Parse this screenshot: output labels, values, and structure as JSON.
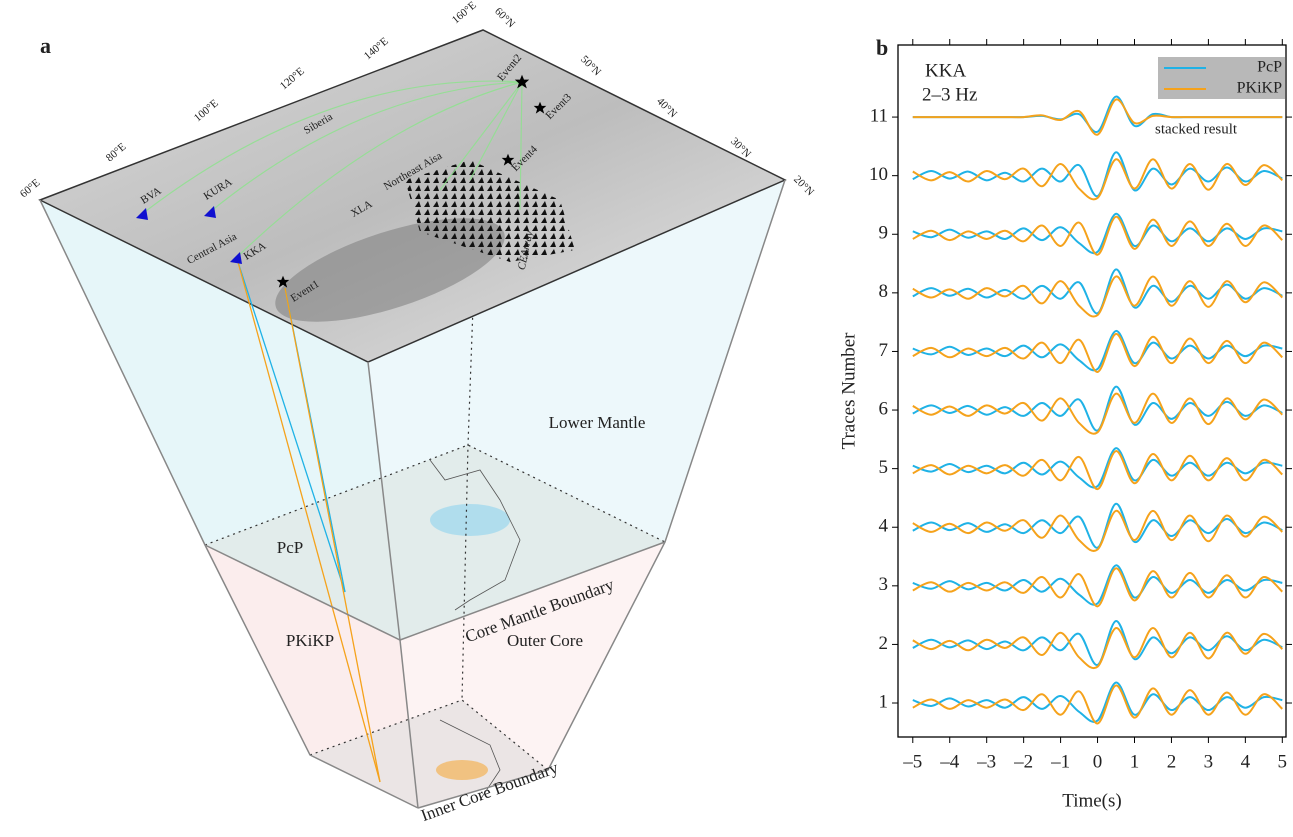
{
  "panel_a": {
    "label": "a",
    "longitudes": [
      "60°E",
      "80°E",
      "100°E",
      "120°E",
      "140°E",
      "160°E"
    ],
    "latitudes": [
      "60°N",
      "50°N",
      "40°N",
      "30°N",
      "20°N"
    ],
    "stations": [
      "BVA",
      "KURA",
      "KKA"
    ],
    "regions": [
      "Central Asia",
      "Siberia",
      "Northeast Aisa",
      "XLA",
      "CEArray"
    ],
    "events": [
      "Event1",
      "Event2",
      "Event3",
      "Event4"
    ],
    "layers": [
      "Lower Mantle",
      "Outer Core"
    ],
    "boundaries": [
      "Core Mantle Boundary",
      "Inner Core Boundary"
    ],
    "phases": [
      "PcP",
      "PKiKP"
    ]
  },
  "chart_data": {
    "type": "line",
    "panel_label": "b",
    "annotations": [
      "KKA",
      "2–3 Hz",
      "stacked result"
    ],
    "x_label": "Time(s)",
    "y_label": "Traces Number",
    "x": [
      -5,
      -4.5,
      -4,
      -3.5,
      -3,
      -2.5,
      -2,
      -1.5,
      -1,
      -0.5,
      0,
      0.5,
      1,
      1.5,
      2,
      2.5,
      3,
      3.5,
      4,
      4.5,
      5
    ],
    "xlim": [
      -5.4,
      5.1
    ],
    "xticks": [
      {
        "value": -5,
        "label": "–5"
      },
      {
        "value": -4,
        "label": "–4"
      },
      {
        "value": -3,
        "label": "–3"
      },
      {
        "value": -2,
        "label": "–2"
      },
      {
        "value": -1,
        "label": "–1"
      },
      0,
      1,
      2,
      3,
      4,
      5
    ],
    "ylim": [
      0.42,
      12.23
    ],
    "yticks": [
      1,
      2,
      3,
      4,
      5,
      6,
      7,
      8,
      9,
      10,
      11
    ],
    "series": [
      {
        "name": "PcP",
        "color": "#1fb2e6",
        "values": [
          [
            1.05,
            0.95,
            1.08,
            0.94,
            1.05,
            0.92,
            1.1,
            0.9,
            1.12,
            0.85,
            0.7,
            1.35,
            0.8,
            1.15,
            0.88,
            1.1,
            0.88,
            1.1,
            0.92,
            1.1,
            1.05
          ],
          [
            1.94,
            2.08,
            1.95,
            2.07,
            1.92,
            2.05,
            1.9,
            2.12,
            1.9,
            2.18,
            1.65,
            2.4,
            1.75,
            2.12,
            1.85,
            2.12,
            1.9,
            2.14,
            1.9,
            2.08,
            1.95
          ],
          [
            3.05,
            2.95,
            3.08,
            2.94,
            3.05,
            2.92,
            3.1,
            2.9,
            3.12,
            2.85,
            2.7,
            3.35,
            2.8,
            3.15,
            2.88,
            3.1,
            2.88,
            3.1,
            2.92,
            3.1,
            3.05
          ],
          [
            3.94,
            4.08,
            3.95,
            4.07,
            3.92,
            4.05,
            3.9,
            4.12,
            3.9,
            4.18,
            3.65,
            4.4,
            3.75,
            4.12,
            3.85,
            4.12,
            3.9,
            4.14,
            3.9,
            4.08,
            3.95
          ],
          [
            5.05,
            4.95,
            5.08,
            4.94,
            5.05,
            4.92,
            5.1,
            4.9,
            5.12,
            4.85,
            4.7,
            5.35,
            4.8,
            5.15,
            4.88,
            5.1,
            4.88,
            5.1,
            4.92,
            5.1,
            5.05
          ],
          [
            5.94,
            6.08,
            5.95,
            6.07,
            5.92,
            6.05,
            5.9,
            6.12,
            5.9,
            6.18,
            5.65,
            6.4,
            5.75,
            6.12,
            5.85,
            6.12,
            5.9,
            6.14,
            5.9,
            6.08,
            5.95
          ],
          [
            7.05,
            6.95,
            7.08,
            6.94,
            7.05,
            6.92,
            7.1,
            6.9,
            7.12,
            6.85,
            6.7,
            7.35,
            6.8,
            7.15,
            6.88,
            7.1,
            6.88,
            7.1,
            6.92,
            7.1,
            7.05
          ],
          [
            7.94,
            8.08,
            7.95,
            8.07,
            7.92,
            8.05,
            7.9,
            8.12,
            7.9,
            8.18,
            7.65,
            8.4,
            7.75,
            8.12,
            7.85,
            8.12,
            7.9,
            8.14,
            7.9,
            8.08,
            7.95
          ],
          [
            9.05,
            8.95,
            9.08,
            8.94,
            9.05,
            8.92,
            9.1,
            8.9,
            9.12,
            8.85,
            8.7,
            9.35,
            8.8,
            9.15,
            8.88,
            9.1,
            8.88,
            9.1,
            8.92,
            9.1,
            9.05
          ],
          [
            9.94,
            10.08,
            9.95,
            10.07,
            9.92,
            10.05,
            9.9,
            10.12,
            9.9,
            10.18,
            9.65,
            10.4,
            9.75,
            10.12,
            9.85,
            10.12,
            9.9,
            10.14,
            9.9,
            10.08,
            9.95
          ],
          [
            11,
            11,
            11,
            11,
            11,
            11,
            11,
            11.02,
            10.96,
            11.05,
            10.75,
            11.35,
            10.85,
            11.05,
            11,
            11,
            11,
            11,
            11,
            11,
            11
          ]
        ]
      },
      {
        "name": "PKiKP",
        "color": "#f5a21b",
        "values": [
          [
            0.92,
            1.06,
            0.9,
            1.05,
            0.92,
            1.06,
            0.88,
            1.15,
            0.8,
            1.2,
            0.65,
            1.3,
            0.75,
            1.25,
            0.8,
            1.22,
            0.8,
            1.18,
            0.8,
            1.15,
            0.9
          ],
          [
            2.07,
            1.92,
            2.06,
            1.9,
            2.08,
            1.94,
            2.12,
            1.82,
            2.2,
            1.78,
            1.62,
            2.28,
            1.78,
            2.28,
            1.78,
            2.2,
            1.76,
            2.2,
            1.84,
            2.18,
            1.92
          ],
          [
            2.92,
            3.06,
            2.9,
            3.05,
            2.92,
            3.06,
            2.88,
            3.15,
            2.8,
            3.2,
            2.65,
            3.3,
            2.75,
            3.25,
            2.8,
            3.22,
            2.8,
            3.18,
            2.8,
            3.15,
            2.9
          ],
          [
            4.07,
            3.92,
            4.06,
            3.9,
            4.08,
            3.94,
            4.12,
            3.82,
            4.2,
            3.78,
            3.62,
            4.28,
            3.78,
            4.28,
            3.78,
            4.2,
            3.76,
            4.2,
            3.84,
            4.18,
            3.92
          ],
          [
            4.92,
            5.06,
            4.9,
            5.05,
            4.92,
            5.06,
            4.88,
            5.15,
            4.8,
            5.2,
            4.65,
            5.3,
            4.75,
            5.25,
            4.8,
            5.22,
            4.8,
            5.18,
            4.8,
            5.15,
            4.9
          ],
          [
            6.07,
            5.92,
            6.06,
            5.9,
            6.08,
            5.94,
            6.12,
            5.82,
            6.2,
            5.78,
            5.62,
            6.28,
            5.78,
            6.28,
            5.78,
            6.2,
            5.76,
            6.2,
            5.84,
            6.18,
            5.92
          ],
          [
            6.92,
            7.06,
            6.9,
            7.05,
            6.92,
            7.06,
            6.88,
            7.15,
            6.8,
            7.2,
            6.65,
            7.3,
            6.75,
            7.25,
            6.8,
            7.22,
            6.8,
            7.18,
            6.8,
            7.15,
            6.9
          ],
          [
            8.07,
            7.92,
            8.06,
            7.9,
            8.08,
            7.94,
            8.12,
            7.82,
            8.2,
            7.78,
            7.62,
            8.28,
            7.78,
            8.28,
            7.78,
            8.2,
            7.76,
            8.2,
            7.84,
            8.18,
            7.92
          ],
          [
            8.92,
            9.06,
            8.9,
            9.05,
            8.92,
            9.06,
            8.88,
            9.15,
            8.8,
            9.2,
            8.65,
            9.3,
            8.75,
            9.25,
            8.8,
            9.22,
            8.8,
            9.18,
            8.8,
            9.15,
            8.9
          ],
          [
            10.07,
            9.92,
            10.06,
            9.9,
            10.08,
            9.94,
            10.12,
            9.82,
            10.2,
            9.78,
            9.62,
            10.28,
            9.78,
            10.28,
            9.78,
            10.2,
            9.76,
            10.2,
            9.84,
            10.18,
            9.92
          ],
          [
            11,
            11,
            11,
            11,
            11,
            11,
            11,
            11.03,
            10.95,
            11.1,
            10.7,
            11.3,
            10.9,
            11.02,
            11,
            11,
            11,
            11,
            11,
            11,
            11
          ]
        ]
      }
    ],
    "legend": "upper right"
  }
}
